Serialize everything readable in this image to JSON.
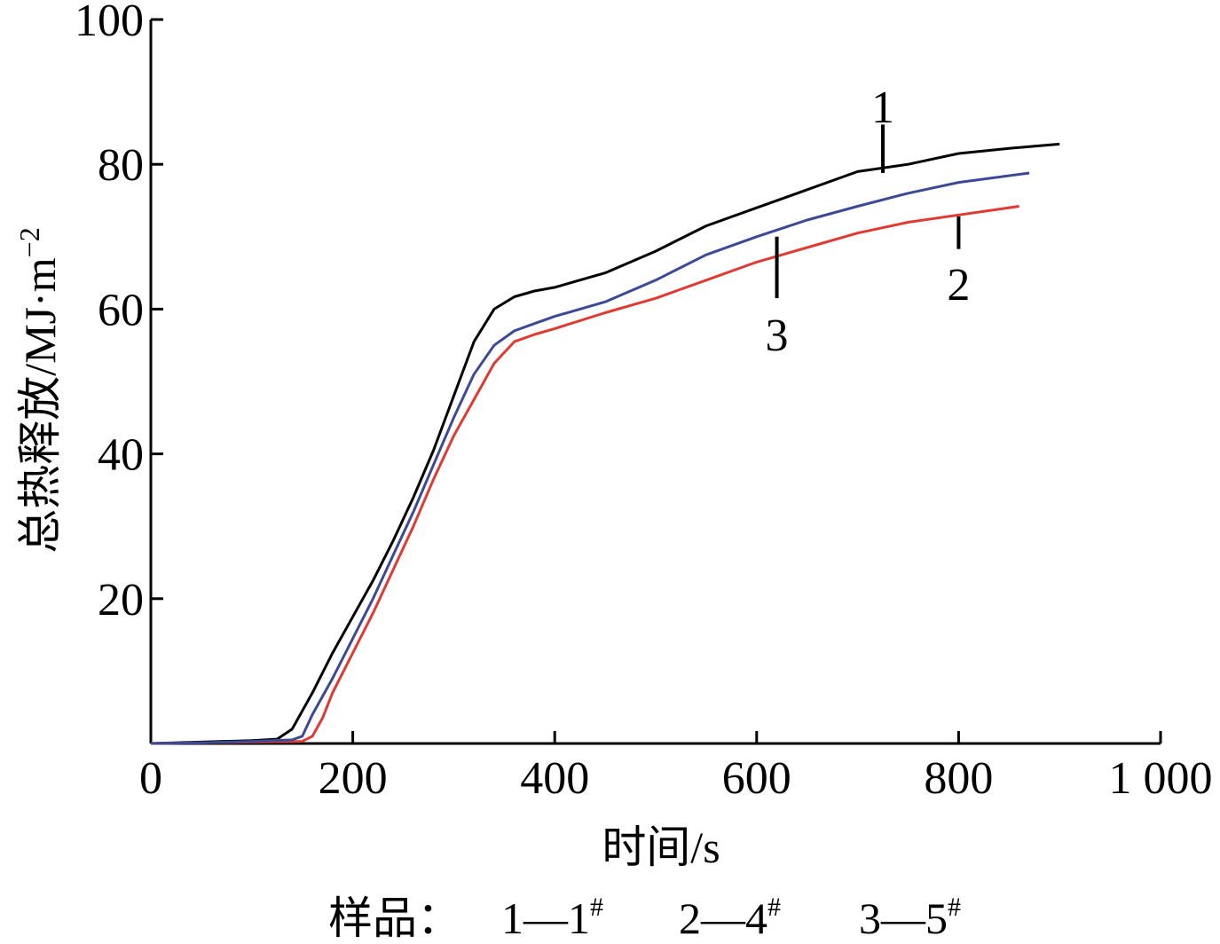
{
  "chart_data": {
    "type": "line",
    "xlabel": "时间/s",
    "ylabel": "总热释放/MJ·m",
    "ylabel_sup": "−2",
    "xlim": [
      0,
      1000
    ],
    "ylim": [
      0,
      100
    ],
    "x_ticks": [
      0,
      200,
      400,
      600,
      800,
      1000
    ],
    "x_tick_labels": [
      "0",
      "200",
      "400",
      "600",
      "800",
      "1 000"
    ],
    "y_ticks": [
      20,
      40,
      60,
      80,
      100
    ],
    "y_tick_labels": [
      "20",
      "40",
      "60",
      "80",
      "100"
    ],
    "grid": false,
    "legend": {
      "label": "样品：",
      "entries": [
        {
          "key": "1",
          "sample": "1",
          "sup": "#"
        },
        {
          "key": "2",
          "sample": "4",
          "sup": "#"
        },
        {
          "key": "3",
          "sample": "5",
          "sup": "#"
        }
      ]
    },
    "series": [
      {
        "name": "1",
        "color": "#000000",
        "x": [
          0,
          50,
          100,
          125,
          140,
          160,
          180,
          200,
          220,
          240,
          260,
          280,
          300,
          320,
          340,
          360,
          380,
          400,
          450,
          500,
          550,
          600,
          650,
          700,
          750,
          800,
          850,
          900
        ],
        "y": [
          0,
          0.2,
          0.4,
          0.6,
          2,
          7,
          12.5,
          17.5,
          22.5,
          28,
          34,
          40.5,
          48,
          55.5,
          60,
          61.7,
          62.5,
          63,
          65,
          68,
          71.5,
          74,
          76.5,
          79,
          80,
          81.5,
          82.2,
          82.8
        ],
        "label_text": "1",
        "label_x": 725,
        "label_y": 88,
        "label_tick_top": 85.5,
        "label_tick_bottom": 78.8
      },
      {
        "name": "2",
        "color": "#e03a32",
        "x": [
          0,
          50,
          100,
          150,
          160,
          170,
          180,
          200,
          220,
          240,
          260,
          280,
          300,
          320,
          340,
          360,
          380,
          400,
          450,
          500,
          550,
          600,
          650,
          700,
          750,
          800,
          860
        ],
        "y": [
          0,
          0.1,
          0.2,
          0.3,
          1,
          3.5,
          7,
          12.5,
          18,
          24,
          30,
          36.5,
          42.5,
          47.5,
          52.5,
          55.5,
          56.5,
          57.3,
          59.5,
          61.5,
          64,
          66.5,
          68.5,
          70.5,
          72,
          73,
          74.2
        ],
        "label_text": "2",
        "label_x": 800,
        "label_y": 63.5,
        "label_tick_top": 72.8,
        "label_tick_bottom": 68.3
      },
      {
        "name": "3",
        "color": "#3a4a96",
        "x": [
          0,
          50,
          100,
          140,
          150,
          160,
          180,
          200,
          220,
          240,
          260,
          280,
          300,
          320,
          340,
          360,
          380,
          400,
          450,
          500,
          550,
          600,
          650,
          700,
          750,
          800,
          870
        ],
        "y": [
          0,
          0.1,
          0.3,
          0.5,
          1,
          4,
          9,
          14.5,
          20,
          26,
          32,
          38.5,
          45,
          51,
          55,
          57,
          58,
          59,
          61,
          64,
          67.5,
          70,
          72.3,
          74.2,
          76,
          77.5,
          78.8
        ],
        "label_text": "3",
        "label_x": 620,
        "label_y": 56.5,
        "label_tick_top": 70,
        "label_tick_bottom": 61.5
      }
    ]
  }
}
